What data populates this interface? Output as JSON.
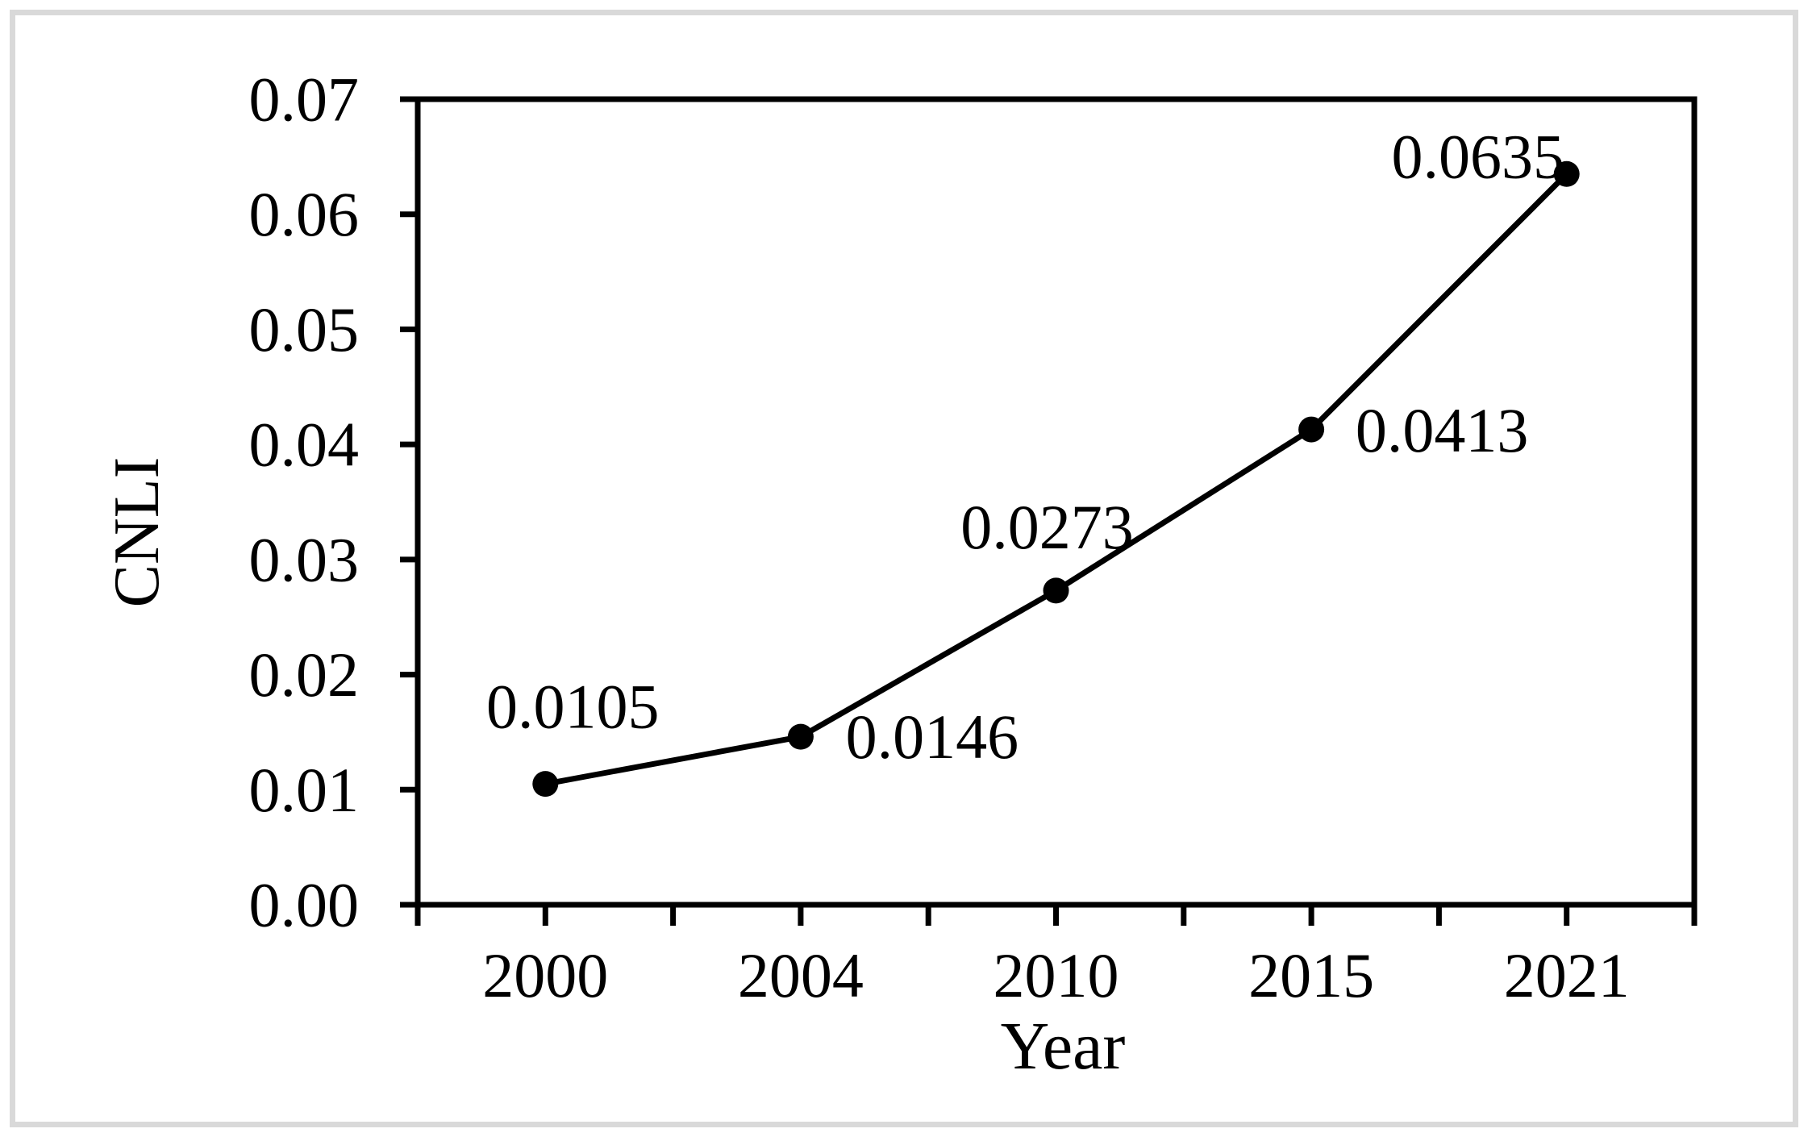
{
  "chart_data": {
    "type": "line",
    "title": "",
    "xlabel": "Year",
    "ylabel": "CNLI",
    "categories": [
      "2000",
      "2004",
      "2010",
      "2015",
      "2021"
    ],
    "series": [
      {
        "name": "CNLI",
        "values": [
          0.0105,
          0.0146,
          0.0273,
          0.0413,
          0.0635
        ],
        "data_labels": [
          "0.0105",
          "0.0146",
          "0.0273",
          "0.0413",
          "0.0635"
        ],
        "label_offsets": [
          [
            34,
            -96
          ],
          [
            163,
            0
          ],
          [
            -11,
            -79
          ],
          [
            162,
            1
          ],
          [
            -110,
            -22
          ]
        ],
        "marker": "circle"
      }
    ],
    "y_axis": {
      "min": 0,
      "max": 0.07,
      "step": 0.01,
      "tick_labels": [
        "0.00",
        "0.01",
        "0.02",
        "0.03",
        "0.04",
        "0.05",
        "0.06",
        "0.07"
      ]
    },
    "x_axis": {
      "boundary_tick_divisions": 10
    },
    "grid": false,
    "legend": false,
    "colors": {
      "line": "#000000",
      "marker": "#000000",
      "axis": "#000000",
      "text": "#000000",
      "frame": "#d9d9d9",
      "background": "#ffffff"
    }
  }
}
